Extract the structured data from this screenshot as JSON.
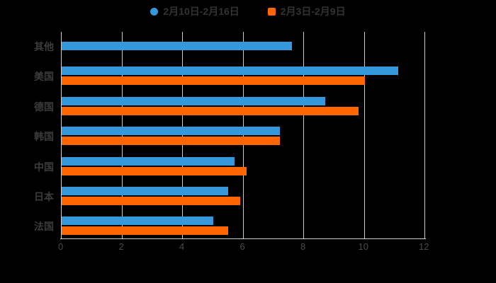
{
  "chart_data": {
    "type": "bar",
    "orientation": "horizontal",
    "title": "",
    "categories": [
      "其他",
      "美国",
      "德国",
      "韩国",
      "中国",
      "日本",
      "法国"
    ],
    "series": [
      {
        "name": "2月10日-2月16日",
        "color": "#3498db",
        "marker": "circle",
        "values": [
          7.6,
          11.1,
          8.7,
          7.2,
          5.7,
          5.5,
          5.0
        ]
      },
      {
        "name": "2月3日-2月9日",
        "color": "#ff6600",
        "marker": "square",
        "values": [
          null,
          10,
          9.8,
          7.2,
          6.1,
          5.9,
          5.5
        ]
      }
    ],
    "x_ticks": [
      "0",
      "2",
      "4",
      "6",
      "8",
      "10",
      "12"
    ],
    "xlim": [
      0,
      12.05
    ],
    "grid": true,
    "legend_position": "top-center"
  },
  "colors": {
    "background": "#000000",
    "grid": "#cccccc",
    "axis": "#cccccc",
    "tick_label": "#4a4a4a",
    "category_label": "#3c3c3c",
    "legend_text": "#333333"
  }
}
